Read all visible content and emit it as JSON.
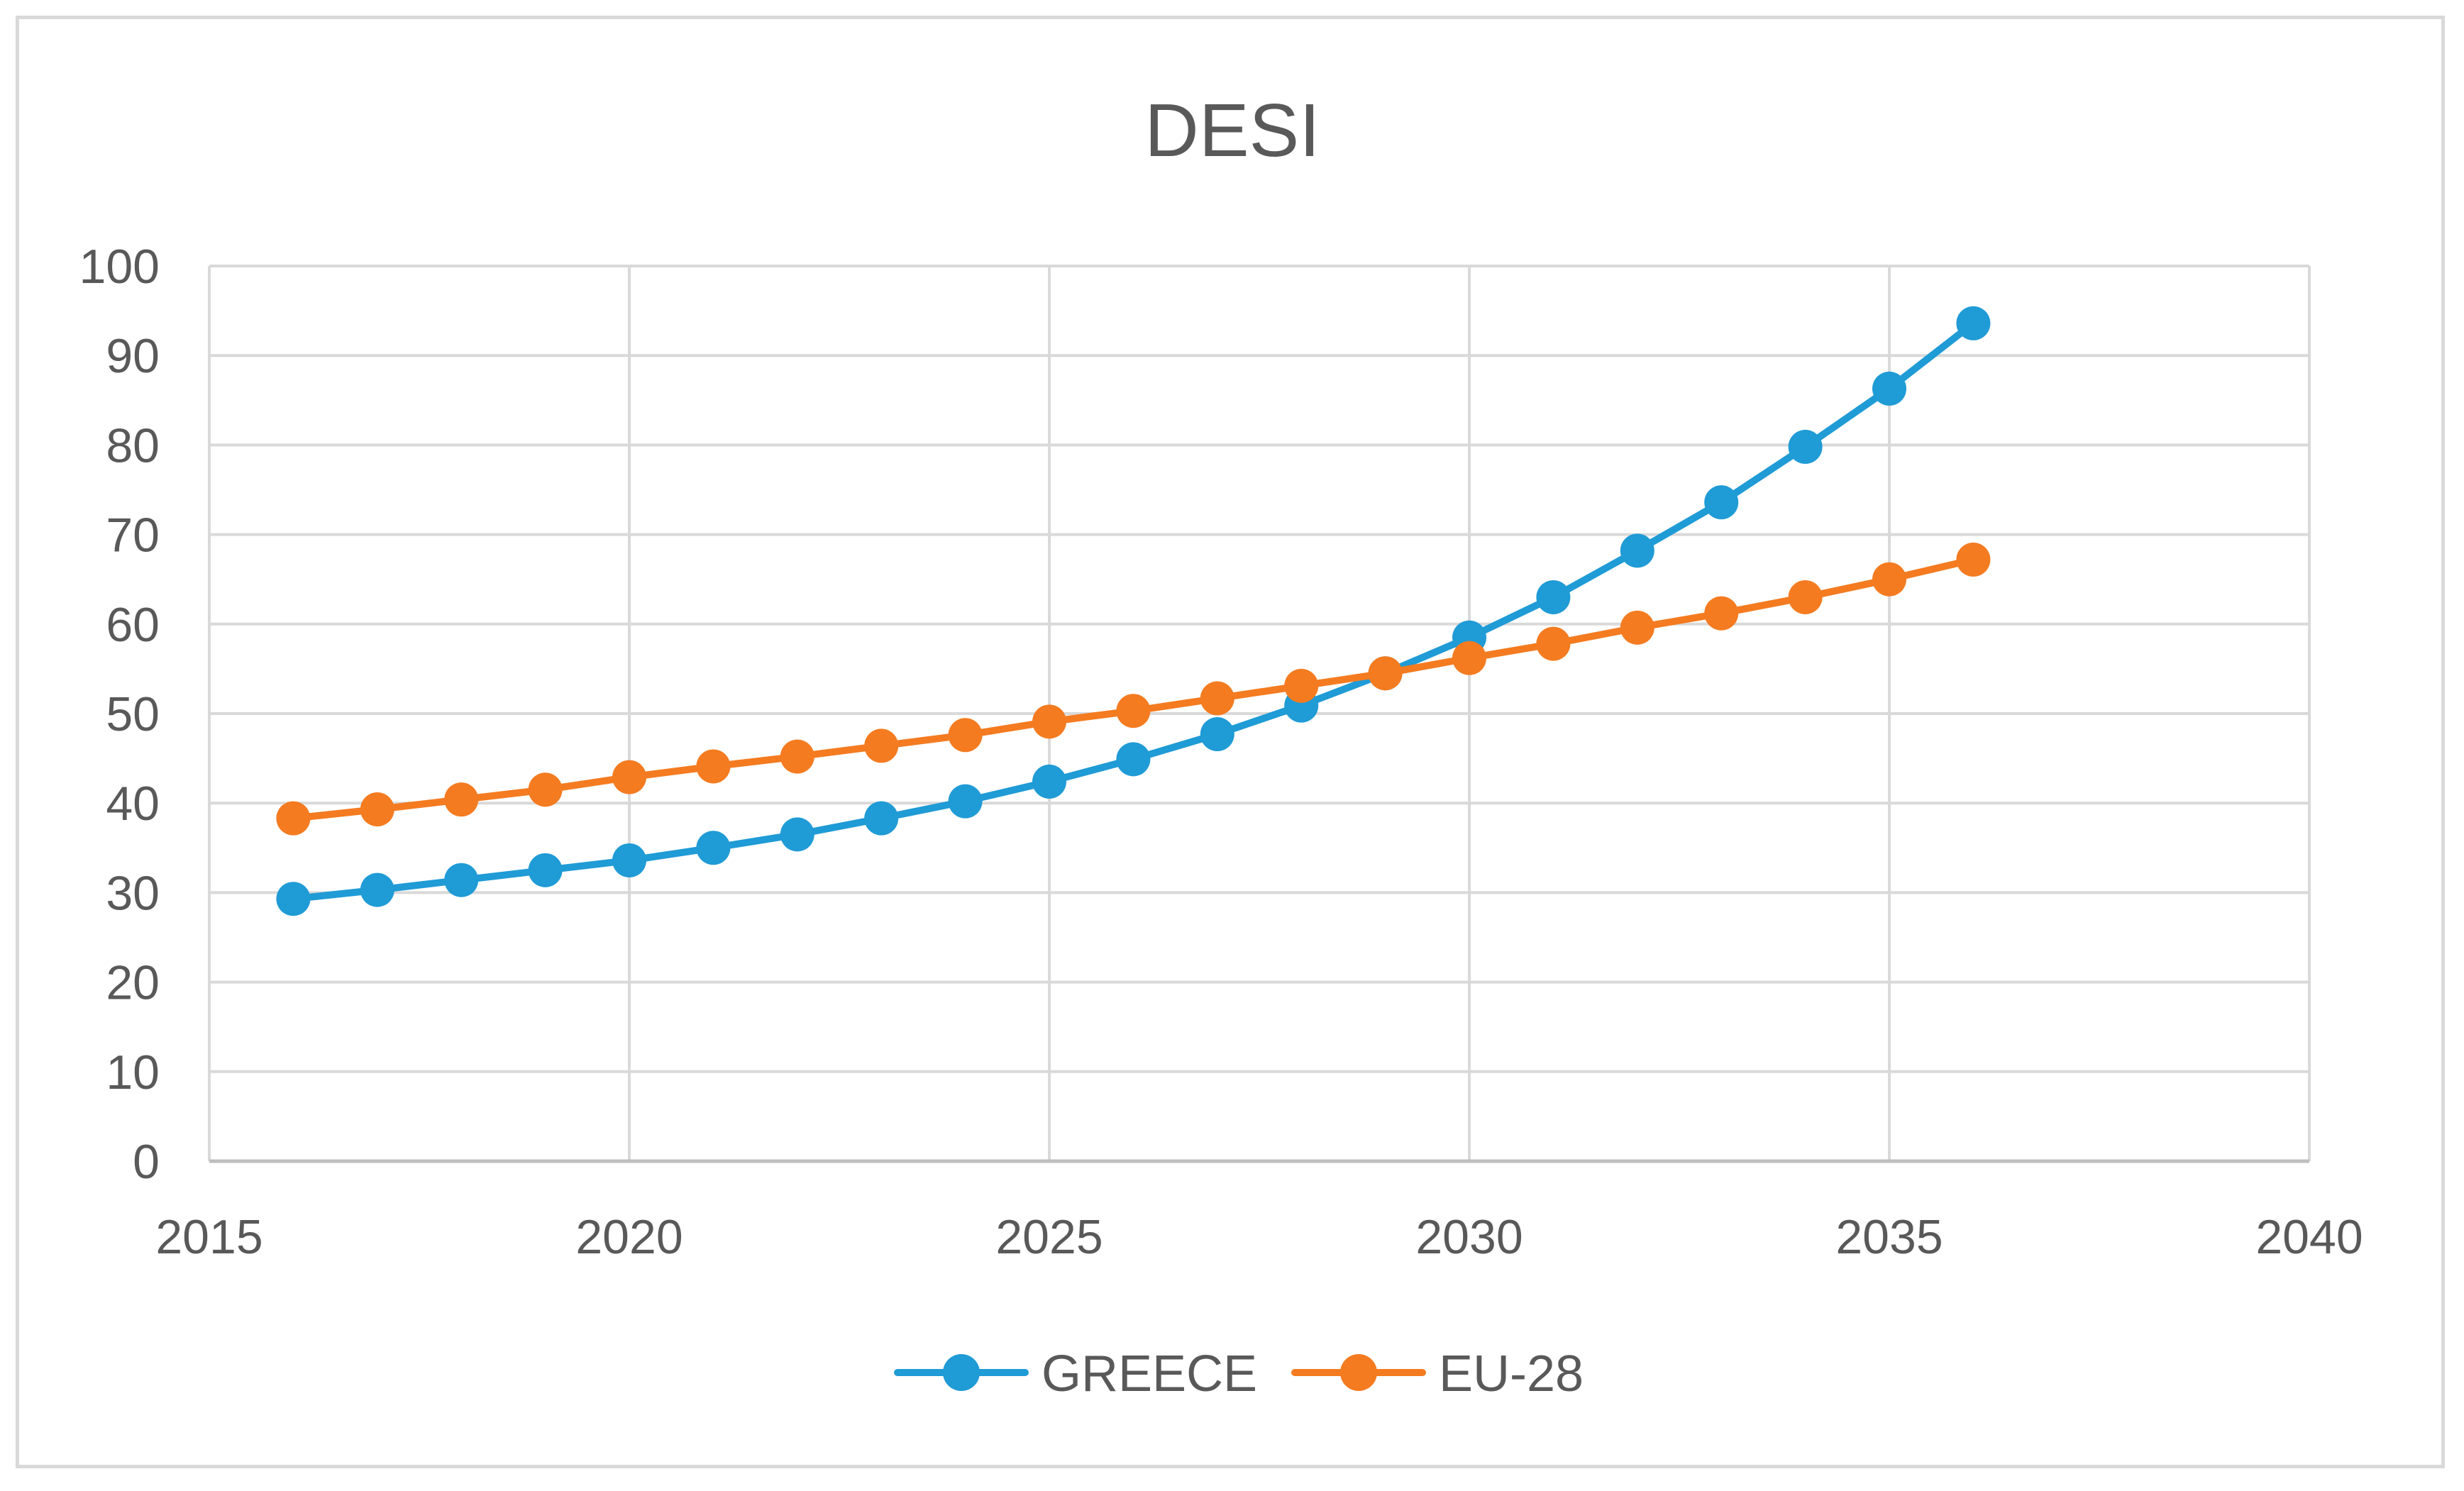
{
  "chart_data": {
    "type": "line",
    "title": "DESI",
    "xlabel": "",
    "ylabel": "",
    "xlim": [
      2015,
      2040
    ],
    "ylim": [
      0,
      100
    ],
    "x_ticks": [
      2015,
      2020,
      2025,
      2030,
      2035,
      2040
    ],
    "y_ticks": [
      0,
      10,
      20,
      30,
      40,
      50,
      60,
      70,
      80,
      90,
      100
    ],
    "x_tick_labels": [
      "2015",
      "2020",
      "2025",
      "2030",
      "2035",
      "2040"
    ],
    "y_tick_labels": [
      "0",
      "10",
      "20",
      "30",
      "40",
      "50",
      "60",
      "70",
      "80",
      "90",
      "100"
    ],
    "grid": true,
    "legend_position": "bottom",
    "x": [
      2016,
      2017,
      2018,
      2019,
      2020,
      2021,
      2022,
      2023,
      2024,
      2025,
      2026,
      2027,
      2028,
      2029,
      2030,
      2031,
      2032,
      2033,
      2034,
      2035,
      2036
    ],
    "series": [
      {
        "name": "GREECE",
        "color": "#1f9bd6",
        "values": [
          29.3,
          30.3,
          31.4,
          32.5,
          33.6,
          35.0,
          36.5,
          38.3,
          40.2,
          42.4,
          44.9,
          47.7,
          50.9,
          54.5,
          58.5,
          63.0,
          68.2,
          73.6,
          79.8,
          86.3,
          93.6
        ]
      },
      {
        "name": "EU-28",
        "color": "#f47b20",
        "values": [
          38.3,
          39.3,
          40.4,
          41.5,
          42.9,
          44.1,
          45.2,
          46.4,
          47.6,
          49.1,
          50.3,
          51.7,
          53.1,
          54.5,
          56.2,
          57.8,
          59.6,
          61.2,
          63.0,
          65.0,
          67.2
        ]
      }
    ]
  }
}
